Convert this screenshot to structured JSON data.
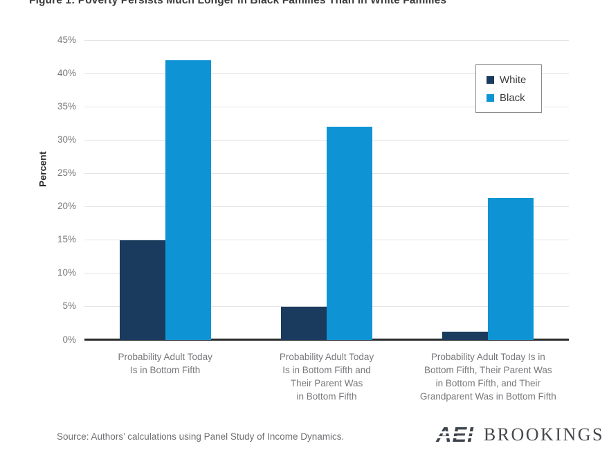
{
  "title": "Figure 1: Poverty Persists Much Longer in Black Families Than in White Families",
  "chart_data": {
    "type": "bar",
    "title": "Figure 1: Poverty Persists Much Longer in Black Families Than in White Families",
    "xlabel": "",
    "ylabel": "Percent",
    "ylim": [
      0,
      45
    ],
    "ytick_step": 5,
    "ytick_suffix": "%",
    "grid": true,
    "legend_position": "top-right",
    "categories": [
      "Probability Adult Today\nIs in Bottom Fifth",
      "Probability Adult Today\nIs in Bottom Fifth and\nTheir Parent  Was\nin Bottom Fifth",
      "Probability Adult Today Is in\nBottom Fifth, Their Parent Was\nin Bottom Fifth, and Their\nGrandparent Was in Bottom Fifth"
    ],
    "series": [
      {
        "name": "White",
        "color": "#1a3a5e",
        "values": [
          15,
          5,
          1.2
        ]
      },
      {
        "name": "Black",
        "color": "#0e94d4",
        "values": [
          42,
          32,
          21.3
        ]
      }
    ]
  },
  "colors": {
    "gridline": "#e3e4e5",
    "axis_line": "#27292b",
    "tick_text": "#77787b",
    "title_text": "#3a3a3c"
  },
  "footer": {
    "source": "Source: Authors’ calculations using Panel Study of Income Dynamics.",
    "logo_aei": "AEI",
    "logo_brookings": "BROOKINGS"
  }
}
